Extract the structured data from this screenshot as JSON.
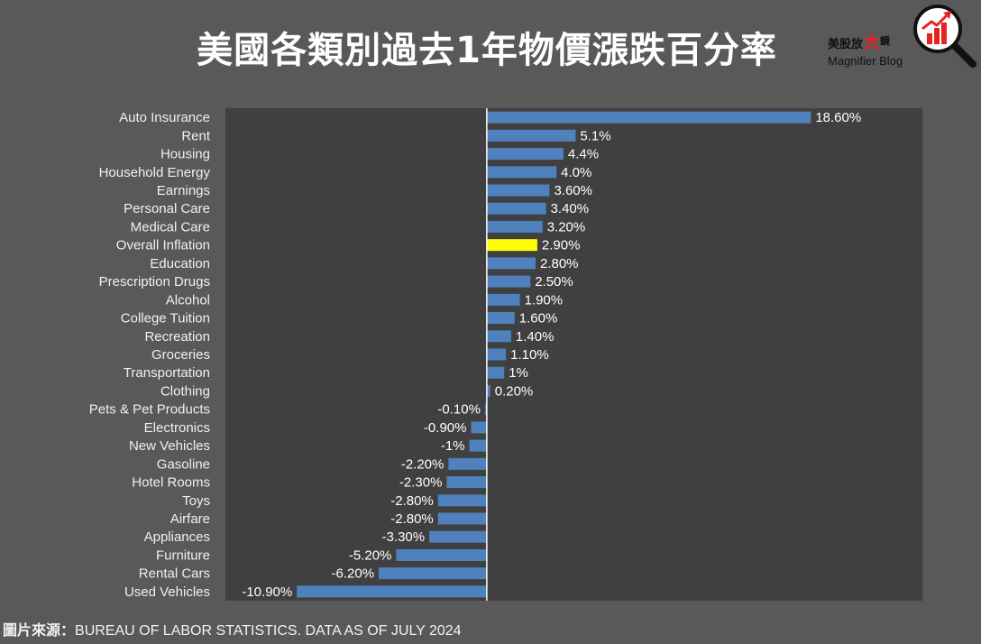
{
  "title": "美國各類別過去1年物價漲跌百分率",
  "logo": {
    "text_start": "美股放",
    "text_accent": "大",
    "text_end": "鏡",
    "subtitle": "Magnifier Blog",
    "icon": "magnifier-chart-icon"
  },
  "source": {
    "label": "圖片來源：",
    "text": "BUREAU OF LABOR STATISTICS. DATA AS OF JULY 2024"
  },
  "colors": {
    "background": "#595959",
    "plot_area": "#404040",
    "bar": "#4f81bd",
    "highlight_bar": "#ffff00",
    "zero_line": "#ffffff",
    "logo_accent": "#e8231f"
  },
  "chart_data": {
    "type": "bar",
    "orientation": "horizontal",
    "categories": [
      "Auto Insurance",
      "Rent",
      "Housing",
      "Household Energy",
      "Earnings",
      "Personal Care",
      "Medical Care",
      "Overall Inflation",
      "Education",
      "Prescription Drugs",
      "Alcohol",
      "College Tuition",
      "Recreation",
      "Groceries",
      "Transportation",
      "Clothing",
      "Pets & Pet Products",
      "Electronics",
      "New Vehicles",
      "Gasoline",
      "Hotel Rooms",
      "Toys",
      "Airfare",
      "Appliances",
      "Furniture",
      "Rental Cars",
      "Used Vehicles"
    ],
    "values": [
      18.6,
      5.1,
      4.4,
      4.0,
      3.6,
      3.4,
      3.2,
      2.9,
      2.8,
      2.5,
      1.9,
      1.6,
      1.4,
      1.1,
      1.0,
      0.2,
      -0.1,
      -0.9,
      -1.0,
      -2.2,
      -2.3,
      -2.8,
      -2.8,
      -3.3,
      -5.2,
      -6.2,
      -10.9
    ],
    "data_labels": [
      "18.60%",
      "5.1%",
      "4.4%",
      "4.0%",
      "3.60%",
      "3.40%",
      "3.20%",
      "2.90%",
      "2.80%",
      "2.50%",
      "1.90%",
      "1.60%",
      "1.40%",
      "1.10%",
      "1%",
      "0.20%",
      "-0.10%",
      "-0.90%",
      "-1%",
      "-2.20%",
      "-2.30%",
      "-2.80%",
      "-2.80%",
      "-3.30%",
      "-5.20%",
      "-6.20%",
      "-10.90%"
    ],
    "highlight_index": 7,
    "xlim": [
      -15,
      25
    ],
    "grid": false,
    "legend": "none"
  }
}
